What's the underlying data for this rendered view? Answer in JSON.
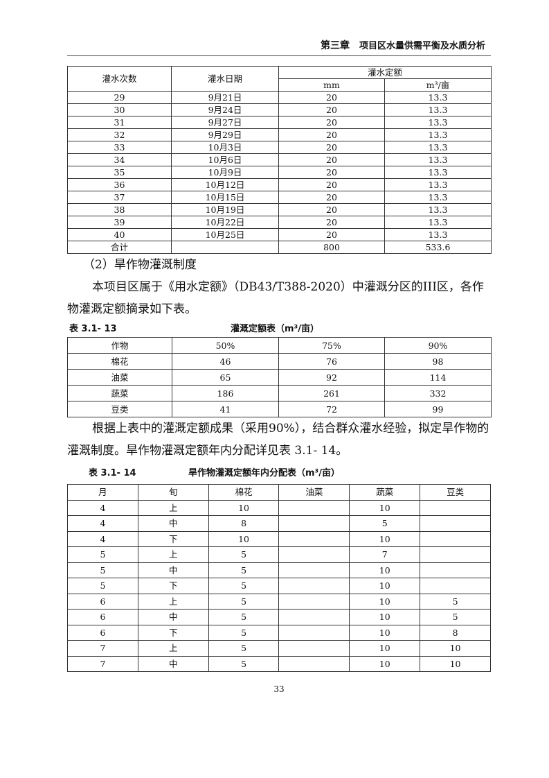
{
  "header": {
    "chapter": "第三章",
    "title": "项目区水量供需平衡及水质分析"
  },
  "table1": {
    "headers": [
      "灌水次数",
      "灌水日期",
      "灌水定额",
      "mm",
      "m³/亩"
    ],
    "rows": [
      [
        "29",
        "9月21日",
        "20",
        "13.3"
      ],
      [
        "30",
        "9月24日",
        "20",
        "13.3"
      ],
      [
        "31",
        "9月27日",
        "20",
        "13.3"
      ],
      [
        "32",
        "9月29日",
        "20",
        "13.3"
      ],
      [
        "33",
        "10月3日",
        "20",
        "13.3"
      ],
      [
        "34",
        "10月6日",
        "20",
        "13.3"
      ],
      [
        "35",
        "10月9日",
        "20",
        "13.3"
      ],
      [
        "36",
        "10月12日",
        "20",
        "13.3"
      ],
      [
        "37",
        "10月15日",
        "20",
        "13.3"
      ],
      [
        "38",
        "10月19日",
        "20",
        "13.3"
      ],
      [
        "39",
        "10月22日",
        "20",
        "13.3"
      ],
      [
        "40",
        "10月25日",
        "20",
        "13.3"
      ],
      [
        "合计",
        "",
        "800",
        "533.6"
      ]
    ]
  },
  "section_heading": "（2）旱作物灌溉制度",
  "para1": "本项目区属于《用水定额》（DB43/T388-2020）中灌溉分区的III区，各作物灌溉定额摘录如下表。",
  "table2": {
    "number": "表 3.1- 13",
    "title": "灌溉定额表（m³/亩）",
    "headers": [
      "作物",
      "50%",
      "75%",
      "90%"
    ],
    "rows": [
      [
        "棉花",
        "46",
        "76",
        "98"
      ],
      [
        "油菜",
        "65",
        "92",
        "114"
      ],
      [
        "蔬菜",
        "186",
        "261",
        "332"
      ],
      [
        "豆类",
        "41",
        "72",
        "99"
      ]
    ]
  },
  "para2": "根据上表中的灌溉定额成果（采用90%），结合群众灌水经验，拟定旱作物的灌溉制度。旱作物灌溉定额年内分配详见表 3.1- 14。",
  "table3": {
    "number": "表 3.1- 14",
    "title": "旱作物灌溉定额年内分配表（m³/亩）",
    "headers": [
      "月",
      "旬",
      "棉花",
      "油菜",
      "蔬菜",
      "豆类"
    ],
    "rows": [
      [
        "4",
        "上",
        "10",
        "",
        "10",
        ""
      ],
      [
        "4",
        "中",
        "8",
        "",
        "5",
        ""
      ],
      [
        "4",
        "下",
        "10",
        "",
        "10",
        ""
      ],
      [
        "5",
        "上",
        "5",
        "",
        "7",
        ""
      ],
      [
        "5",
        "中",
        "5",
        "",
        "10",
        ""
      ],
      [
        "5",
        "下",
        "5",
        "",
        "10",
        ""
      ],
      [
        "6",
        "上",
        "5",
        "",
        "10",
        "5"
      ],
      [
        "6",
        "中",
        "5",
        "",
        "10",
        "5"
      ],
      [
        "6",
        "下",
        "5",
        "",
        "10",
        "8"
      ],
      [
        "7",
        "上",
        "5",
        "",
        "10",
        "10"
      ],
      [
        "7",
        "中",
        "5",
        "",
        "10",
        "10"
      ]
    ]
  },
  "page_number": "33"
}
